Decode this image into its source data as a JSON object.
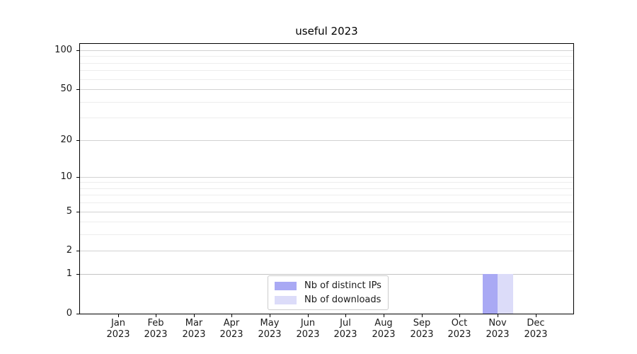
{
  "chart_data": {
    "type": "bar",
    "title": "useful 2023",
    "xlabel": "",
    "ylabel": "",
    "categories": [
      [
        "Jan",
        "2023"
      ],
      [
        "Feb",
        "2023"
      ],
      [
        "Mar",
        "2023"
      ],
      [
        "Apr",
        "2023"
      ],
      [
        "May",
        "2023"
      ],
      [
        "Jun",
        "2023"
      ],
      [
        "Jul",
        "2023"
      ],
      [
        "Aug",
        "2023"
      ],
      [
        "Sep",
        "2023"
      ],
      [
        "Oct",
        "2023"
      ],
      [
        "Nov",
        "2023"
      ],
      [
        "Dec",
        "2023"
      ]
    ],
    "series": [
      {
        "name": "Nb of distinct IPs",
        "color": "#a9a9f4",
        "values": [
          0,
          0,
          0,
          0,
          0,
          0,
          0,
          0,
          0,
          0,
          1,
          0
        ]
      },
      {
        "name": "Nb of downloads",
        "color": "#dcdcf9",
        "values": [
          0,
          0,
          0,
          0,
          0,
          0,
          0,
          0,
          0,
          0,
          1,
          0
        ]
      }
    ],
    "y_major_ticks": [
      0,
      1,
      2,
      5,
      10,
      20,
      50,
      100
    ],
    "y_minor_ticks": [
      3,
      4,
      6,
      7,
      8,
      9,
      30,
      40,
      60,
      70,
      80,
      90
    ],
    "ylim": [
      0,
      112
    ],
    "scale": "log10(v+1)",
    "grid": true,
    "grid_color_major": "#d2d2d2",
    "grid_color_baseline": "#c4c4c4",
    "grid_color_minor": "#ededed",
    "legend_position": "lower center",
    "legend_border_color": "#cccccc"
  }
}
